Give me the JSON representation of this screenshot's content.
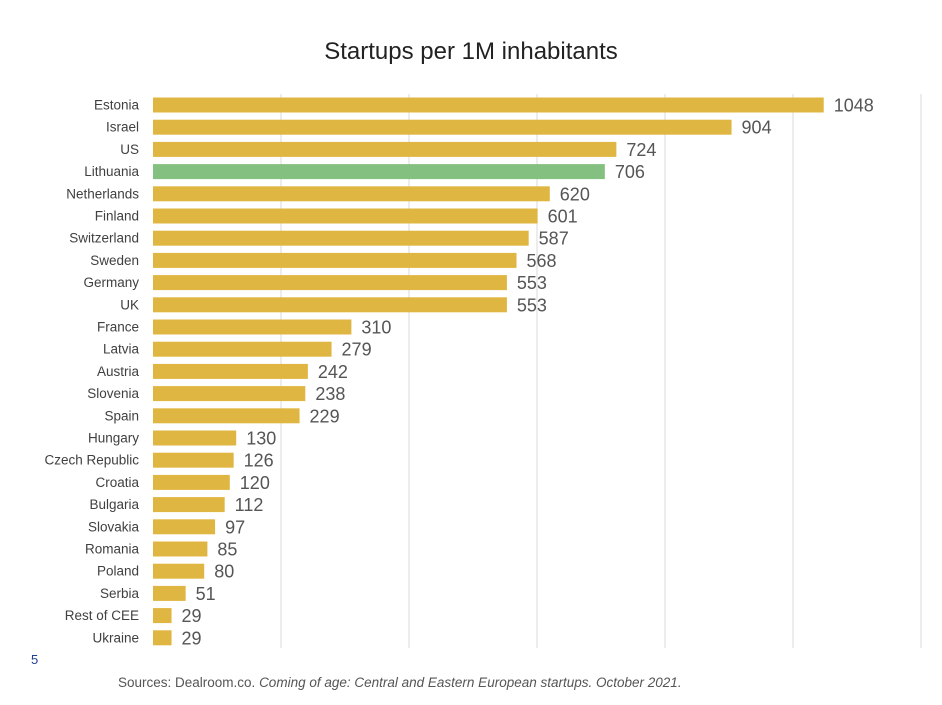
{
  "page_number": "5",
  "sources": {
    "prefix": "Sources: Dealroom.co. ",
    "italic": "Coming of age: Central and Eastern European startups. October 2021."
  },
  "chart_data": {
    "type": "bar",
    "orientation": "horizontal",
    "title": "Startups per 1M inhabitants",
    "xlabel": "",
    "ylabel": "",
    "xlim": [
      0,
      1200
    ],
    "grid": true,
    "legend": "none",
    "categories": [
      "Estonia",
      "Israel",
      "US",
      "Lithuania",
      "Netherlands",
      "Finland",
      "Switzerland",
      "Sweden",
      "Germany",
      "UK",
      "France",
      "Latvia",
      "Austria",
      "Slovenia",
      "Spain",
      "Hungary",
      "Czech Republic",
      "Croatia",
      "Bulgaria",
      "Slovakia",
      "Romania",
      "Poland",
      "Serbia",
      "Rest of CEE",
      "Ukraine"
    ],
    "values": [
      1048,
      904,
      724,
      706,
      620,
      601,
      587,
      568,
      553,
      553,
      310,
      279,
      242,
      238,
      229,
      130,
      126,
      120,
      112,
      97,
      85,
      80,
      51,
      29,
      29
    ],
    "colors": {
      "default": "#e0b642",
      "highlight": "#84c080",
      "highlight_category": "Lithuania",
      "grid": "#d9d9d9",
      "label": "#404040",
      "value_label": "#555555"
    }
  }
}
